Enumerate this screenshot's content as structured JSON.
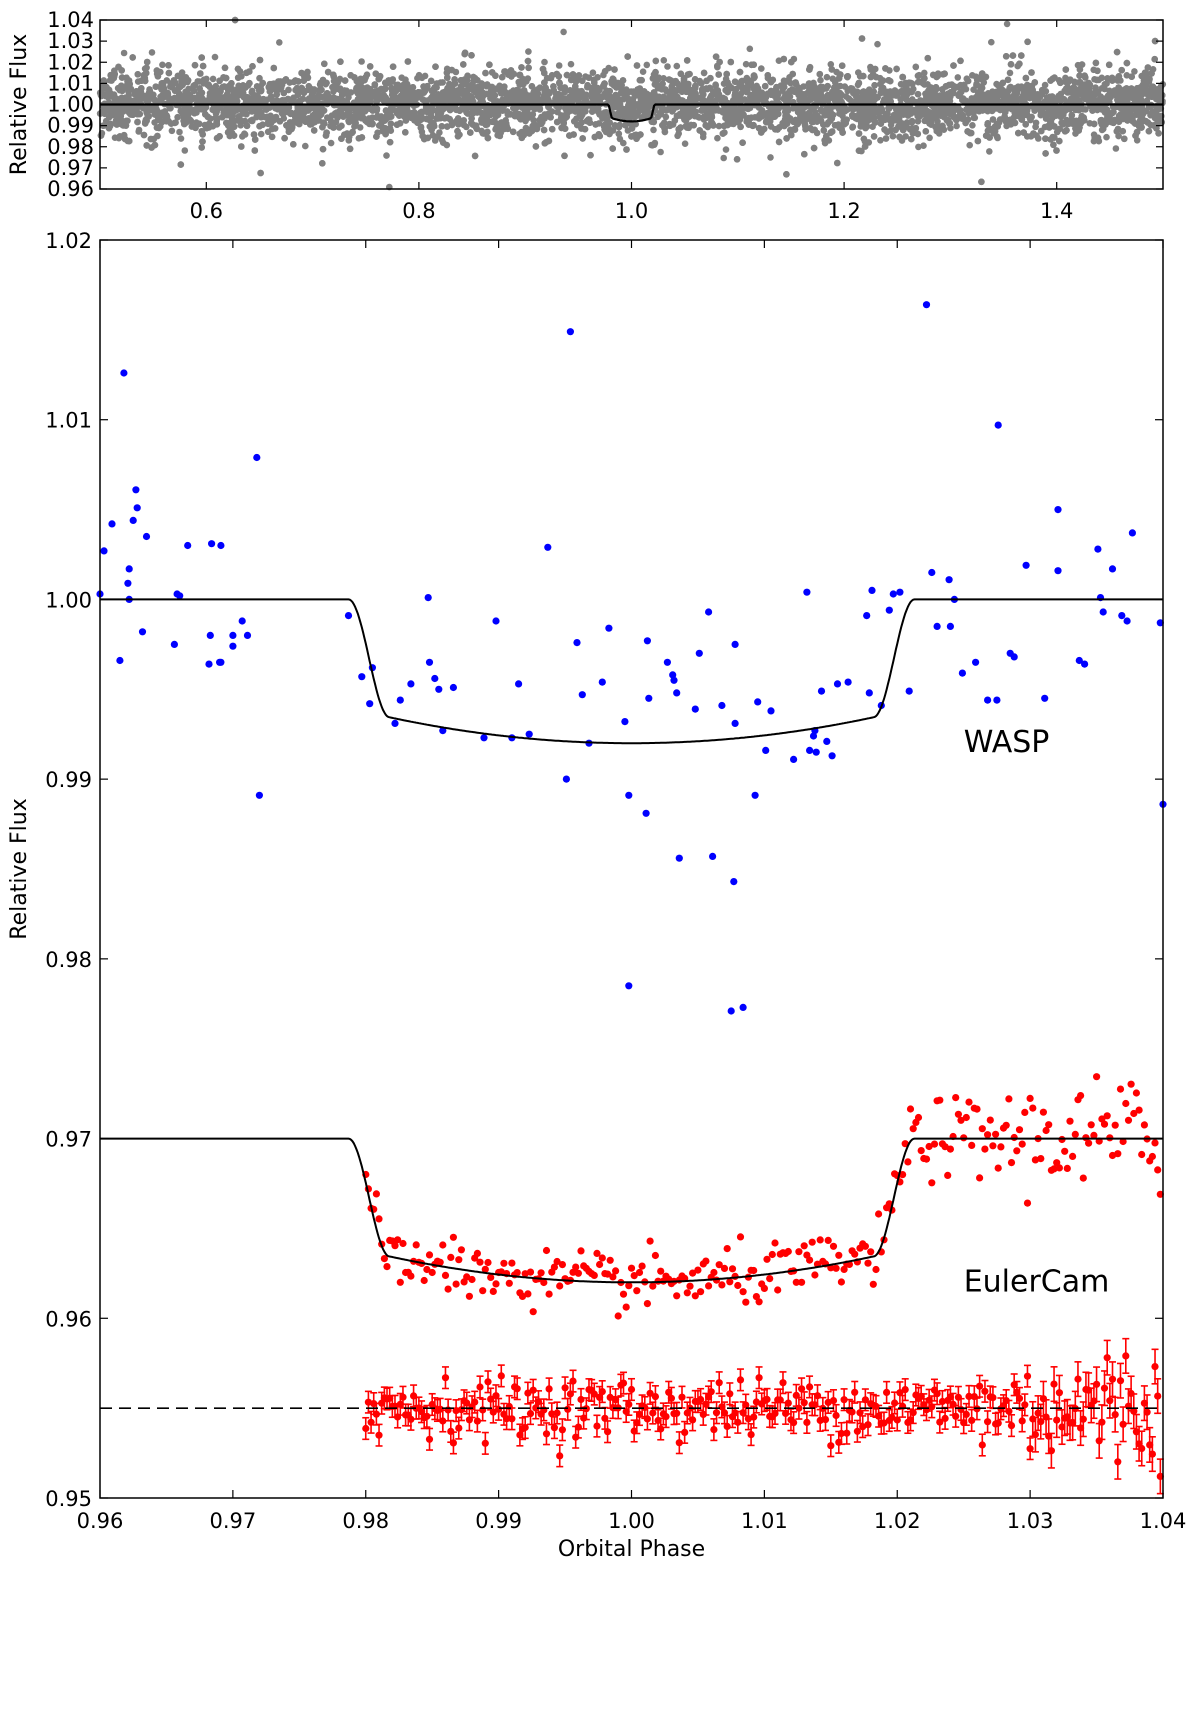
{
  "chart_data": [
    {
      "panel": "top",
      "type": "scatter",
      "title": "",
      "xlabel": "",
      "ylabel": "Relative Flux",
      "xlim": [
        0.5,
        1.5
      ],
      "ylim": [
        0.96,
        1.04
      ],
      "xticks": [
        "0.6",
        "0.8",
        "1.0",
        "1.2",
        "1.4"
      ],
      "xtick_values": [
        0.6,
        0.8,
        1.0,
        1.2,
        1.4
      ],
      "yticks": [
        "0.96",
        "0.97",
        "0.98",
        "0.99",
        "1.00",
        "1.01",
        "1.02",
        "1.03",
        "1.04"
      ],
      "ytick_values": [
        0.96,
        0.97,
        0.98,
        0.99,
        1.0,
        1.01,
        1.02,
        1.03,
        1.04
      ],
      "grid": false,
      "series": [
        {
          "kind": "points",
          "color": "#808080",
          "description_values": {
            "center": 1.0,
            "typical_scatter": 0.008,
            "outliers_range": [
              0.96,
              1.04
            ]
          }
        },
        {
          "kind": "model",
          "color": "#000000",
          "baseline": 1.0,
          "transit_center": 1.0,
          "transit_half_width": 0.022,
          "transit_depth": 0.008
        }
      ]
    },
    {
      "panel": "bottom",
      "type": "scatter",
      "title": "",
      "xlabel": "Orbital Phase",
      "ylabel": "Relative Flux",
      "xlim": [
        0.96,
        1.04
      ],
      "ylim": [
        0.95,
        1.02
      ],
      "xticks": [
        "0.96",
        "0.97",
        "0.98",
        "0.99",
        "1.00",
        "1.01",
        "1.02",
        "1.03",
        "1.04"
      ],
      "xtick_values": [
        0.96,
        0.97,
        0.98,
        0.99,
        1.0,
        1.01,
        1.02,
        1.03,
        1.04
      ],
      "yticks": [
        "0.95",
        "0.96",
        "0.97",
        "0.98",
        "0.99",
        "1.00",
        "1.01",
        "1.02"
      ],
      "ytick_values": [
        0.95,
        0.96,
        0.97,
        0.98,
        0.99,
        1.0,
        1.01,
        1.02
      ],
      "grid": false,
      "annotations": [
        {
          "text": "WASP",
          "x": 1.025,
          "y": 0.9915
        },
        {
          "text": "EulerCam",
          "x": 1.025,
          "y": 0.9615
        }
      ],
      "series": [
        {
          "name": "WASP",
          "color": "#0000ff",
          "points": [
            [
              0.96,
              1.0003
            ],
            [
              0.9603,
              1.0027
            ],
            [
              0.9609,
              1.0042
            ],
            [
              0.9615,
              0.9966
            ],
            [
              0.9618,
              1.0126
            ],
            [
              0.9621,
              1.0009
            ],
            [
              0.9622,
              1.0017
            ],
            [
              0.9622,
              1.0
            ],
            [
              0.9625,
              1.0044
            ],
            [
              0.9627,
              1.0061
            ],
            [
              0.9628,
              1.0051
            ],
            [
              0.9632,
              0.9982
            ],
            [
              0.9635,
              1.0035
            ],
            [
              0.9656,
              0.9975
            ],
            [
              0.9658,
              1.0003
            ],
            [
              0.966,
              1.0002
            ],
            [
              0.9666,
              1.003
            ],
            [
              0.9682,
              0.9964
            ],
            [
              0.9683,
              0.998
            ],
            [
              0.9684,
              1.0031
            ],
            [
              0.969,
              0.9965
            ],
            [
              0.9691,
              1.003
            ],
            [
              0.9691,
              0.9965
            ],
            [
              0.97,
              0.9974
            ],
            [
              0.97,
              0.998
            ],
            [
              0.9707,
              0.9988
            ],
            [
              0.9711,
              0.998
            ],
            [
              0.9718,
              1.0079
            ],
            [
              0.972,
              0.9891
            ],
            [
              0.9787,
              0.9991
            ],
            [
              0.9797,
              0.9957
            ],
            [
              0.9803,
              0.9942
            ],
            [
              0.9805,
              0.9962
            ],
            [
              0.9822,
              0.9931
            ],
            [
              0.9826,
              0.9944
            ],
            [
              0.9834,
              0.9953
            ],
            [
              0.9847,
              1.0001
            ],
            [
              0.9848,
              0.9965
            ],
            [
              0.9852,
              0.9956
            ],
            [
              0.9855,
              0.995
            ],
            [
              0.9858,
              0.9927
            ],
            [
              0.9866,
              0.9951
            ],
            [
              0.9889,
              0.9923
            ],
            [
              0.9898,
              0.9988
            ],
            [
              0.991,
              0.9923
            ],
            [
              0.9915,
              0.9953
            ],
            [
              0.9923,
              0.9925
            ],
            [
              0.9937,
              1.0029
            ],
            [
              0.9951,
              0.99
            ],
            [
              0.9954,
              1.0149
            ],
            [
              0.9959,
              0.9976
            ],
            [
              0.9963,
              0.9947
            ],
            [
              0.9968,
              0.992
            ],
            [
              0.9978,
              0.9954
            ],
            [
              0.9983,
              0.9984
            ],
            [
              0.9995,
              0.9932
            ],
            [
              0.9998,
              0.9891
            ],
            [
              0.9998,
              0.9785
            ],
            [
              1.0011,
              0.9881
            ],
            [
              1.0012,
              0.9977
            ],
            [
              1.0013,
              0.9945
            ],
            [
              1.0027,
              0.9965
            ],
            [
              1.0031,
              0.9958
            ],
            [
              1.0032,
              0.9955
            ],
            [
              1.0034,
              0.9948
            ],
            [
              1.0036,
              0.9856
            ],
            [
              1.0048,
              0.9939
            ],
            [
              1.0051,
              0.997
            ],
            [
              1.0058,
              0.9993
            ],
            [
              1.0061,
              0.9857
            ],
            [
              1.0068,
              0.9941
            ],
            [
              1.0075,
              0.9771
            ],
            [
              1.0077,
              0.9843
            ],
            [
              1.0078,
              0.9931
            ],
            [
              1.0078,
              0.9975
            ],
            [
              1.0084,
              0.9773
            ],
            [
              1.0093,
              0.9891
            ],
            [
              1.0095,
              0.9943
            ],
            [
              1.0101,
              0.9916
            ],
            [
              1.0105,
              0.9938
            ],
            [
              1.0122,
              0.9911
            ],
            [
              1.0132,
              1.0004
            ],
            [
              1.0134,
              0.9916
            ],
            [
              1.0137,
              0.9924
            ],
            [
              1.0138,
              0.9927
            ],
            [
              1.0139,
              0.9915
            ],
            [
              1.0143,
              0.9949
            ],
            [
              1.0147,
              0.9921
            ],
            [
              1.0151,
              0.9913
            ],
            [
              1.0155,
              0.9953
            ],
            [
              1.0163,
              0.9954
            ],
            [
              1.0177,
              0.9991
            ],
            [
              1.0179,
              0.9948
            ],
            [
              1.0181,
              1.0005
            ],
            [
              1.0188,
              0.9941
            ],
            [
              1.0194,
              0.9994
            ],
            [
              1.0197,
              1.0003
            ],
            [
              1.0202,
              1.0004
            ],
            [
              1.0209,
              0.9949
            ],
            [
              1.0222,
              1.0164
            ],
            [
              1.0226,
              1.0015
            ],
            [
              1.023,
              0.9985
            ],
            [
              1.0239,
              1.0011
            ],
            [
              1.024,
              0.9985
            ],
            [
              1.0243,
              1.0
            ],
            [
              1.0249,
              0.9959
            ],
            [
              1.0259,
              0.9965
            ],
            [
              1.0268,
              0.9944
            ],
            [
              1.0275,
              0.9944
            ],
            [
              1.0276,
              1.0097
            ],
            [
              1.0285,
              0.997
            ],
            [
              1.0288,
              0.9968
            ],
            [
              1.0297,
              1.0019
            ],
            [
              1.0311,
              0.9945
            ],
            [
              1.0321,
              1.005
            ],
            [
              1.0321,
              1.0016
            ],
            [
              1.0337,
              0.9966
            ],
            [
              1.0341,
              0.9964
            ],
            [
              1.0351,
              1.0028
            ],
            [
              1.0353,
              1.0001
            ],
            [
              1.0355,
              0.9993
            ],
            [
              1.0362,
              1.0017
            ],
            [
              1.0369,
              0.9991
            ],
            [
              1.0373,
              0.9988
            ],
            [
              1.0377,
              1.0037
            ],
            [
              1.0398,
              0.9987
            ],
            [
              1.04,
              0.9886
            ]
          ]
        },
        {
          "name": "EulerCam",
          "color": "#ff0000",
          "description_values": {
            "pre_ingress": 0.97,
            "in_transit_min": 0.962,
            "post_egress": 0.97,
            "ingress_start": 0.9787,
            "egress_end": 1.0213
          }
        },
        {
          "name": "EulerCam residuals",
          "color": "#ff0000",
          "baseline": 0.955,
          "errorbar_typical": 0.0006
        },
        {
          "name": "WASP model",
          "color": "#000000",
          "baseline": 1.0,
          "transit_min": 0.992,
          "ingress": [
            0.9787,
            0.9818
          ],
          "egress": [
            1.0182,
            1.0213
          ]
        },
        {
          "name": "EulerCam model",
          "color": "#000000",
          "baseline": 0.97,
          "transit_min": 0.962,
          "ingress": [
            0.9787,
            0.9818
          ],
          "egress": [
            1.0182,
            1.0213
          ]
        },
        {
          "name": "Residual baseline",
          "color": "#000000",
          "linestyle": "dashed",
          "y": 0.955
        }
      ]
    }
  ]
}
